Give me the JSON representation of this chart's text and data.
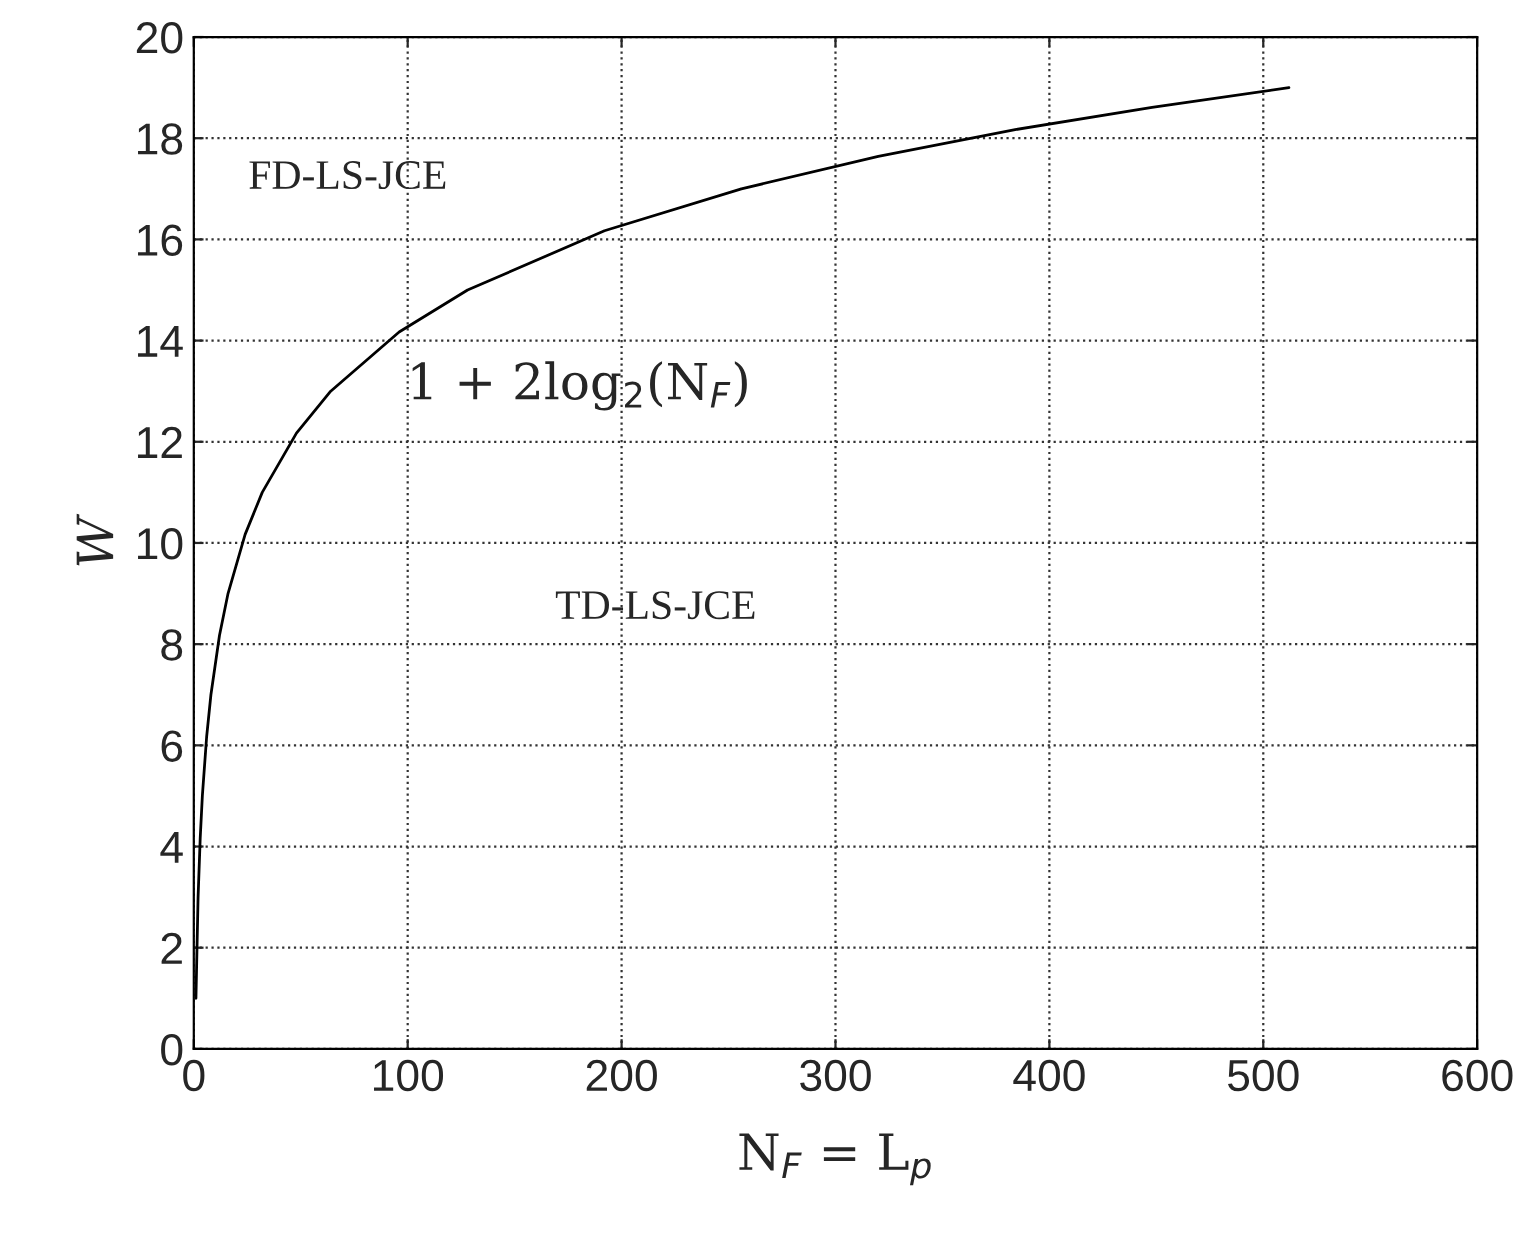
{
  "chart_data": {
    "type": "line",
    "xlabel": "N$_{F}$ = L$_{p}$",
    "ylabel": "W",
    "x": [
      1,
      2,
      3,
      4,
      6,
      8,
      12,
      16,
      24,
      32,
      48,
      64,
      96,
      128,
      192,
      256,
      320,
      384,
      448,
      512
    ],
    "series": [
      {
        "color": "#000000",
        "values": [
          1,
          3,
          4.17,
          5,
          6.17,
          7,
          8.17,
          9,
          10.17,
          11,
          12.17,
          13,
          14.17,
          15,
          16.17,
          17,
          17.64,
          18.17,
          18.61,
          19
        ]
      }
    ],
    "xlim": [
      0,
      600
    ],
    "xticks": [
      0,
      100,
      200,
      300,
      400,
      500,
      600
    ],
    "ylim": [
      0,
      20
    ],
    "yticks": [
      0,
      2,
      4,
      6,
      8,
      10,
      12,
      14,
      16,
      18,
      20
    ],
    "grid": true,
    "line_style": "solid",
    "marker": "none",
    "annotations": [
      "1 + 2log$_{2}$(N$_{F}$)",
      "FD-LS-JCE",
      "TD-LS-JCE"
    ]
  }
}
